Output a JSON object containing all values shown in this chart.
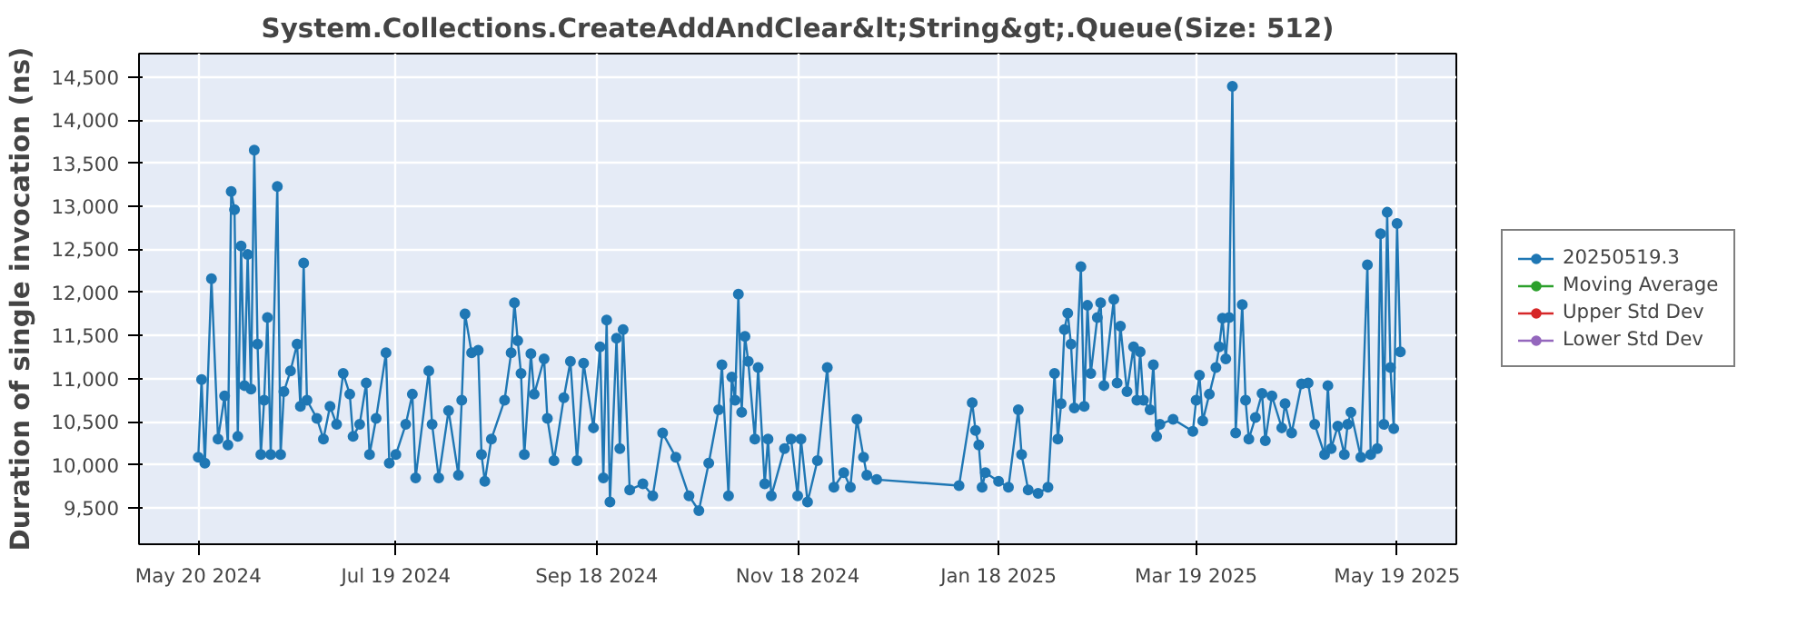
{
  "chart_data": {
    "type": "line",
    "title": "System.Collections.CreateAddAndClear&lt;String&gt;.Queue(Size: 512)",
    "ylabel": "Duration of single invocation (ns)",
    "xlim": [
      "2024-05-02",
      "2025-06-06"
    ],
    "xticks": [
      {
        "value": "2024-05-20",
        "label": "May 20 2024"
      },
      {
        "value": "2024-07-19",
        "label": "Jul 19 2024"
      },
      {
        "value": "2024-09-18",
        "label": "Sep 18 2024"
      },
      {
        "value": "2024-11-18",
        "label": "Nov 18 2024"
      },
      {
        "value": "2025-01-18",
        "label": "Jan 18 2025"
      },
      {
        "value": "2025-03-19",
        "label": "Mar 19 2025"
      },
      {
        "value": "2025-05-19",
        "label": "May 19 2025"
      }
    ],
    "ylim": [
      9080,
      14770
    ],
    "yticks": [
      {
        "value": 9500,
        "label": "9,500"
      },
      {
        "value": 10000,
        "label": "10,000"
      },
      {
        "value": 10500,
        "label": "10,500"
      },
      {
        "value": 11000,
        "label": "11,000"
      },
      {
        "value": 11500,
        "label": "11,500"
      },
      {
        "value": 12000,
        "label": "12,000"
      },
      {
        "value": 12500,
        "label": "12,500"
      },
      {
        "value": 13000,
        "label": "13,000"
      },
      {
        "value": 13500,
        "label": "13,500"
      },
      {
        "value": 14000,
        "label": "14,000"
      },
      {
        "value": 14500,
        "label": "14,500"
      }
    ],
    "grid": true,
    "legend": "right",
    "marker": "circle",
    "line_style": "solid",
    "series": [
      {
        "name": "20250519.3",
        "color": "#1f77b4",
        "x": [
          "2024-05-20",
          "2024-05-21",
          "2024-05-22",
          "2024-05-24",
          "2024-05-26",
          "2024-05-28",
          "2024-05-29",
          "2024-05-30",
          "2024-05-31",
          "2024-06-01",
          "2024-06-02",
          "2024-06-03",
          "2024-06-04",
          "2024-06-05",
          "2024-06-06",
          "2024-06-07",
          "2024-06-08",
          "2024-06-09",
          "2024-06-10",
          "2024-06-11",
          "2024-06-13",
          "2024-06-14",
          "2024-06-15",
          "2024-06-17",
          "2024-06-19",
          "2024-06-20",
          "2024-06-21",
          "2024-06-22",
          "2024-06-25",
          "2024-06-27",
          "2024-06-29",
          "2024-07-01",
          "2024-07-03",
          "2024-07-05",
          "2024-07-06",
          "2024-07-08",
          "2024-07-10",
          "2024-07-11",
          "2024-07-13",
          "2024-07-16",
          "2024-07-17",
          "2024-07-19",
          "2024-07-22",
          "2024-07-24",
          "2024-07-25",
          "2024-07-29",
          "2024-07-30",
          "2024-08-01",
          "2024-08-04",
          "2024-08-07",
          "2024-08-08",
          "2024-08-09",
          "2024-08-11",
          "2024-08-13",
          "2024-08-14",
          "2024-08-15",
          "2024-08-17",
          "2024-08-21",
          "2024-08-23",
          "2024-08-24",
          "2024-08-25",
          "2024-08-26",
          "2024-08-27",
          "2024-08-29",
          "2024-08-30",
          "2024-09-02",
          "2024-09-03",
          "2024-09-05",
          "2024-09-08",
          "2024-09-10",
          "2024-09-12",
          "2024-09-14",
          "2024-09-17",
          "2024-09-19",
          "2024-09-20",
          "2024-09-21",
          "2024-09-22",
          "2024-09-24",
          "2024-09-25",
          "2024-09-26",
          "2024-09-28",
          "2024-10-02",
          "2024-10-05",
          "2024-10-08",
          "2024-10-12",
          "2024-10-16",
          "2024-10-19",
          "2024-10-22",
          "2024-10-25",
          "2024-10-26",
          "2024-10-28",
          "2024-10-29",
          "2024-10-30",
          "2024-10-31",
          "2024-11-01",
          "2024-11-02",
          "2024-11-03",
          "2024-11-05",
          "2024-11-06",
          "2024-11-08",
          "2024-11-09",
          "2024-11-10",
          "2024-11-14",
          "2024-11-16",
          "2024-11-18",
          "2024-11-19",
          "2024-11-21",
          "2024-11-24",
          "2024-11-27",
          "2024-11-29",
          "2024-12-02",
          "2024-12-04",
          "2024-12-06",
          "2024-12-08",
          "2024-12-09",
          "2024-12-12",
          "2025-01-06",
          "2025-01-10",
          "2025-01-11",
          "2025-01-12",
          "2025-01-13",
          "2025-01-14",
          "2025-01-18",
          "2025-01-21",
          "2025-01-24",
          "2025-01-25",
          "2025-01-27",
          "2025-01-30",
          "2025-02-02",
          "2025-02-04",
          "2025-02-05",
          "2025-02-06",
          "2025-02-07",
          "2025-02-08",
          "2025-02-09",
          "2025-02-10",
          "2025-02-12",
          "2025-02-13",
          "2025-02-14",
          "2025-02-15",
          "2025-02-17",
          "2025-02-18",
          "2025-02-19",
          "2025-02-22",
          "2025-02-23",
          "2025-02-24",
          "2025-02-26",
          "2025-02-28",
          "2025-03-01",
          "2025-03-02",
          "2025-03-03",
          "2025-03-05",
          "2025-03-06",
          "2025-03-07",
          "2025-03-08",
          "2025-03-12",
          "2025-03-18",
          "2025-03-19",
          "2025-03-20",
          "2025-03-21",
          "2025-03-23",
          "2025-03-25",
          "2025-03-26",
          "2025-03-27",
          "2025-03-28",
          "2025-03-29",
          "2025-03-30",
          "2025-03-31",
          "2025-04-02",
          "2025-04-03",
          "2025-04-04",
          "2025-04-06",
          "2025-04-08",
          "2025-04-09",
          "2025-04-11",
          "2025-04-14",
          "2025-04-15",
          "2025-04-17",
          "2025-04-20",
          "2025-04-22",
          "2025-04-24",
          "2025-04-27",
          "2025-04-28",
          "2025-04-29",
          "2025-05-01",
          "2025-05-03",
          "2025-05-04",
          "2025-05-05",
          "2025-05-08",
          "2025-05-10",
          "2025-05-11",
          "2025-05-13",
          "2025-05-14",
          "2025-05-15",
          "2025-05-16",
          "2025-05-17",
          "2025-05-18",
          "2025-05-19",
          "2025-05-20"
        ],
        "values": [
          10090,
          10990,
          10020,
          12160,
          10300,
          10800,
          10230,
          13170,
          12960,
          10330,
          12540,
          10920,
          12440,
          10880,
          13650,
          11400,
          10120,
          10750,
          11710,
          10120,
          13230,
          10120,
          10850,
          11090,
          11400,
          10680,
          12340,
          10750,
          10540,
          10300,
          10680,
          10470,
          11060,
          10820,
          10330,
          10470,
          10950,
          10120,
          10540,
          11300,
          10020,
          10120,
          10470,
          10820,
          9850,
          11090,
          10470,
          9850,
          10630,
          9880,
          10750,
          11750,
          11300,
          11330,
          10120,
          9810,
          10300,
          10750,
          11300,
          11880,
          11440,
          11060,
          10120,
          11290,
          10820,
          11230,
          10540,
          10050,
          10780,
          11200,
          10050,
          11180,
          10430,
          11370,
          9850,
          11680,
          9570,
          11470,
          10190,
          11570,
          9710,
          9780,
          9640,
          10370,
          10090,
          9640,
          9470,
          10020,
          10640,
          11160,
          9640,
          11020,
          10750,
          11980,
          10610,
          11490,
          11200,
          10300,
          11130,
          9780,
          10300,
          9640,
          10190,
          10300,
          9640,
          10300,
          9570,
          10050,
          11130,
          9740,
          9910,
          9740,
          10530,
          10090,
          9880,
          9830,
          9760,
          10720,
          10400,
          10230,
          9740,
          9910,
          9810,
          9740,
          10640,
          10120,
          9710,
          9670,
          9740,
          11060,
          10300,
          10710,
          11570,
          11760,
          11400,
          10660,
          12300,
          10680,
          11850,
          11060,
          11710,
          11880,
          10920,
          11920,
          10950,
          11610,
          10850,
          11370,
          10750,
          11310,
          10750,
          10640,
          11160,
          10330,
          10470,
          10530,
          10390,
          10750,
          11040,
          10510,
          10820,
          11130,
          11370,
          11700,
          11230,
          11710,
          14390,
          10370,
          11860,
          10750,
          10300,
          10550,
          10830,
          10280,
          10800,
          10430,
          10710,
          10370,
          10940,
          10950,
          10470,
          10120,
          10920,
          10190,
          10450,
          10120,
          10470,
          10610,
          10090,
          12320,
          10120,
          10190,
          12680,
          10470,
          12930,
          11130,
          10420,
          12800,
          11310
        ]
      },
      {
        "name": "Moving Average",
        "color": "#2ca02c"
      },
      {
        "name": "Upper Std Dev",
        "color": "#d62728"
      },
      {
        "name": "Lower Std Dev",
        "color": "#9467bd"
      }
    ]
  }
}
